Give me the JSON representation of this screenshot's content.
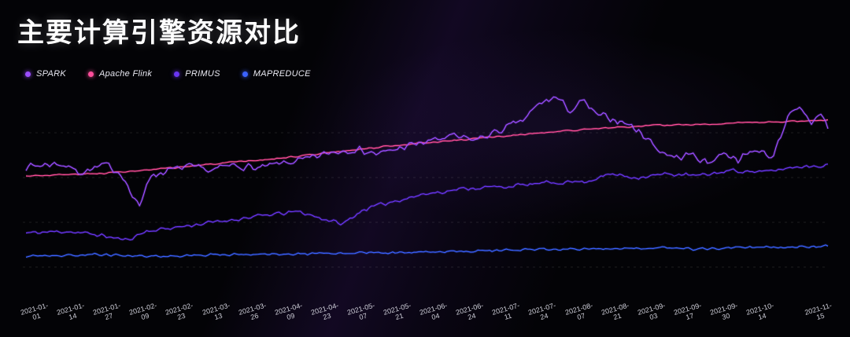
{
  "title": "主要计算引擎资源对比",
  "colors": {
    "background": "#030306",
    "title": "#ffffff",
    "tick_label": "#cfcfd9",
    "grid": "rgba(255,255,255,0.10)"
  },
  "chart_data": {
    "type": "line",
    "title": "主要计算引擎资源对比",
    "xlabel": "",
    "ylabel": "",
    "ylim": [
      0,
      100
    ],
    "grid": "dashed-horizontal",
    "grid_values": [
      0,
      25,
      50,
      75
    ],
    "legend_position": "top-left",
    "x_tick_labels": [
      "2021-01-01",
      "2021-01-14",
      "2021-01-27",
      "2021-02-09",
      "2021-02-23",
      "2021-03-13",
      "2021-03-26",
      "2021-04-09",
      "2021-04-23",
      "2021-05-07",
      "2021-05-21",
      "2021-06-04",
      "2021-06-24",
      "2021-07-11",
      "2021-07-24",
      "2021-08-07",
      "2021-08-21",
      "2021-09-03",
      "2021-09-17",
      "2021-09-30",
      "2021-10-14",
      "2021-11-15"
    ],
    "x_range": [
      "2021-01-01",
      "2021-11-15"
    ],
    "series": [
      {
        "name": "SPARK",
        "color": "#9b4dff",
        "noise": 2.4,
        "seed": 7,
        "points": [
          [
            0,
            56
          ],
          [
            0.04,
            58
          ],
          [
            0.07,
            53
          ],
          [
            0.1,
            57
          ],
          [
            0.12,
            52
          ],
          [
            0.133,
            39
          ],
          [
            0.142,
            33
          ],
          [
            0.152,
            50
          ],
          [
            0.17,
            53
          ],
          [
            0.2,
            56
          ],
          [
            0.23,
            54
          ],
          [
            0.26,
            57
          ],
          [
            0.29,
            55
          ],
          [
            0.32,
            58
          ],
          [
            0.35,
            60
          ],
          [
            0.38,
            64
          ],
          [
            0.41,
            66
          ],
          [
            0.44,
            63
          ],
          [
            0.47,
            67
          ],
          [
            0.5,
            70
          ],
          [
            0.53,
            73
          ],
          [
            0.56,
            71
          ],
          [
            0.59,
            76
          ],
          [
            0.62,
            82
          ],
          [
            0.64,
            91
          ],
          [
            0.66,
            95
          ],
          [
            0.68,
            87
          ],
          [
            0.695,
            93
          ],
          [
            0.71,
            85
          ],
          [
            0.73,
            83
          ],
          [
            0.75,
            80
          ],
          [
            0.77,
            74
          ],
          [
            0.79,
            65
          ],
          [
            0.81,
            61
          ],
          [
            0.83,
            63
          ],
          [
            0.85,
            58
          ],
          [
            0.87,
            64
          ],
          [
            0.89,
            60
          ],
          [
            0.91,
            66
          ],
          [
            0.93,
            61
          ],
          [
            0.95,
            84
          ],
          [
            0.965,
            88
          ],
          [
            0.98,
            80
          ],
          [
            0.99,
            87
          ],
          [
            1,
            78
          ]
        ]
      },
      {
        "name": "Apache Flink",
        "color": "#ff4e9b",
        "noise": 0.5,
        "seed": 3,
        "points": [
          [
            0,
            51
          ],
          [
            0.08,
            52
          ],
          [
            0.15,
            54
          ],
          [
            0.22,
            57
          ],
          [
            0.3,
            60
          ],
          [
            0.38,
            64
          ],
          [
            0.46,
            68
          ],
          [
            0.54,
            71
          ],
          [
            0.62,
            74
          ],
          [
            0.7,
            77
          ],
          [
            0.78,
            79
          ],
          [
            0.86,
            80
          ],
          [
            0.93,
            81
          ],
          [
            1,
            82
          ]
        ]
      },
      {
        "name": "PRIMUS",
        "color": "#6a35f2",
        "noise": 1.3,
        "seed": 11,
        "points": [
          [
            0,
            19
          ],
          [
            0.05,
            20
          ],
          [
            0.09,
            18
          ],
          [
            0.125,
            15
          ],
          [
            0.15,
            20
          ],
          [
            0.2,
            23
          ],
          [
            0.25,
            26
          ],
          [
            0.3,
            29
          ],
          [
            0.34,
            31
          ],
          [
            0.37,
            27
          ],
          [
            0.395,
            24
          ],
          [
            0.42,
            32
          ],
          [
            0.46,
            37
          ],
          [
            0.5,
            41
          ],
          [
            0.55,
            44
          ],
          [
            0.6,
            45
          ],
          [
            0.65,
            47
          ],
          [
            0.7,
            48
          ],
          [
            0.73,
            52
          ],
          [
            0.76,
            50
          ],
          [
            0.8,
            52
          ],
          [
            0.84,
            51
          ],
          [
            0.88,
            54
          ],
          [
            0.92,
            53
          ],
          [
            0.96,
            56
          ],
          [
            1,
            57
          ]
        ]
      },
      {
        "name": "MAPREDUCE",
        "color": "#3b62ff",
        "noise": 0.8,
        "seed": 19,
        "points": [
          [
            0,
            6
          ],
          [
            0.08,
            7
          ],
          [
            0.16,
            6
          ],
          [
            0.24,
            7
          ],
          [
            0.32,
            7
          ],
          [
            0.4,
            8
          ],
          [
            0.48,
            8
          ],
          [
            0.56,
            9
          ],
          [
            0.64,
            10
          ],
          [
            0.72,
            10
          ],
          [
            0.78,
            11
          ],
          [
            0.84,
            10
          ],
          [
            0.9,
            11
          ],
          [
            0.96,
            11
          ],
          [
            1,
            12
          ]
        ]
      }
    ]
  }
}
